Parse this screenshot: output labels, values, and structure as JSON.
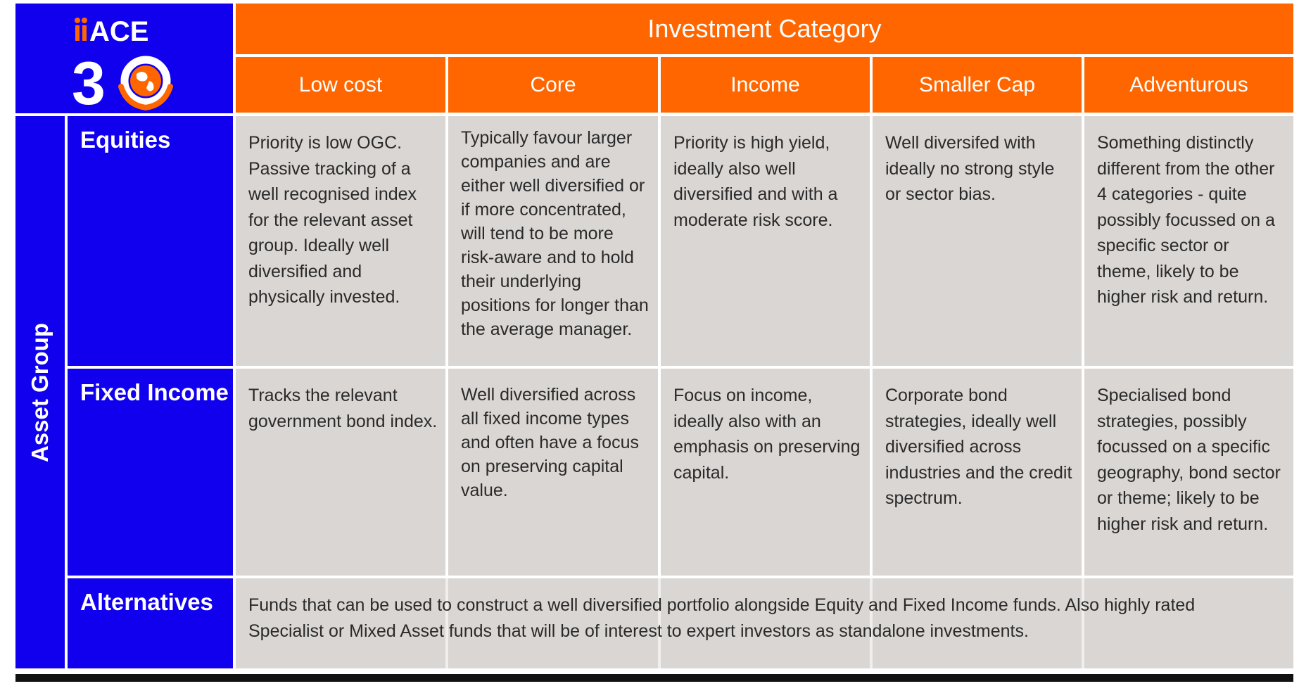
{
  "logo": {
    "top_text": "ACE",
    "number_text": "30"
  },
  "header": {
    "category_title": "Investment Category",
    "columns": [
      "Low cost",
      "Core",
      "Income",
      "Smaller Cap",
      "Adventurous"
    ]
  },
  "side_label": "Asset Group",
  "rows": [
    {
      "label": "Equities",
      "cells": [
        "Priority is low OGC. Passive tracking of a well recognised index for the relevant asset group. Ideally well diversified and physically invested.",
        "Typically favour larger companies and are either well diversified or if more concentrated, will tend to be more risk-aware and to hold their underlying positions for longer than the average manager.",
        "Priority is high yield, ideally also well diversified and with a moderate risk score.",
        "Well diversifed with ideally no strong style or sector bias.",
        "Something distinctly different from the other 4 categories - quite possibly focussed on a specific sector or theme, likely to be higher risk and return."
      ]
    },
    {
      "label": "Fixed Income",
      "cells": [
        "Tracks the relevant government bond index.",
        "Well diversified across all fixed income types and often have a focus on preserving capital value.",
        "Focus on income, ideally also with an emphasis on preserving capital.",
        "Corporate bond strategies, ideally well diversified across industries and the credit spectrum.",
        "Specialised bond strategies, possibly focussed on a specific geography, bond sector or theme; likely to be higher risk and return."
      ]
    },
    {
      "label": "Alternatives",
      "merged_text": "Funds that can be used to construct a well diversified portfolio alongside Equity and Fixed Income funds. Also highly rated Specialist or Mixed Asset funds that will be of interest to expert investors as standalone investments."
    }
  ],
  "colors": {
    "blue": "#1100ee",
    "orange": "#ff6600",
    "grey": "#dad6d3",
    "white": "#ffffff",
    "text": "#2a2a2a",
    "footer_bar": "#111111"
  }
}
